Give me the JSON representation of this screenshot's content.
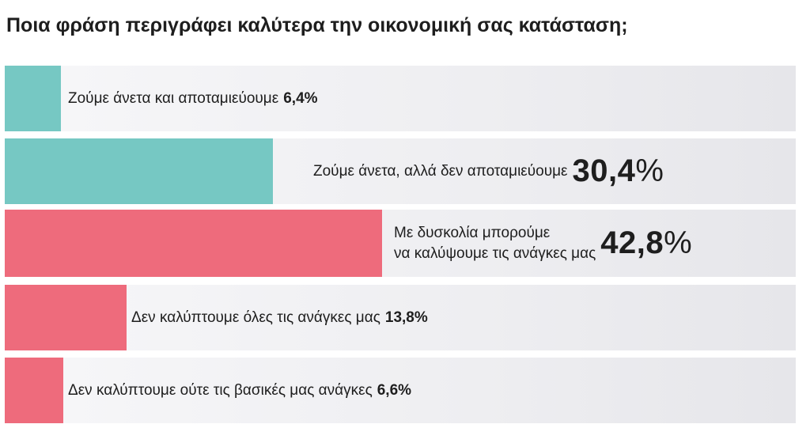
{
  "chart_data": {
    "type": "bar",
    "orientation": "horizontal",
    "title": "Ποια φράση περιγράφει καλύτερα την οικονομική σας κατάσταση;",
    "categories": [
      "Ζούμε άνετα και αποταμιεύουμε",
      "Ζούμε άνετα, αλλά δεν αποταμιεύουμε",
      "Με δυσκολία μπορούμε να καλύψουμε τις ανάγκες μας",
      "Δεν καλύπτουμε όλες τις ανάγκες μας",
      "Δεν καλύπτουμε ούτε τις βασικές μας ανάγκες"
    ],
    "values": [
      6.4,
      30.4,
      42.8,
      13.8,
      6.6
    ],
    "value_labels": [
      "6,4%",
      "30,4%",
      "42,8%",
      "13,8%",
      "6,6%"
    ],
    "value_label_numbers": [
      "30,4",
      "42,8"
    ],
    "value_label_unit": "%",
    "label_lines": [
      [],
      [],
      [
        "Με δυσκολία μπορούμε",
        "να καλύψουμε τις ανάγκες μας"
      ],
      [],
      []
    ],
    "xlim": [
      0,
      100
    ],
    "colors": [
      "#76c8c3",
      "#76c8c3",
      "#ee6b7c",
      "#ee6b7c",
      "#ee6b7c"
    ],
    "track_color": "#eeeef1",
    "grid": false,
    "legend": "none"
  }
}
